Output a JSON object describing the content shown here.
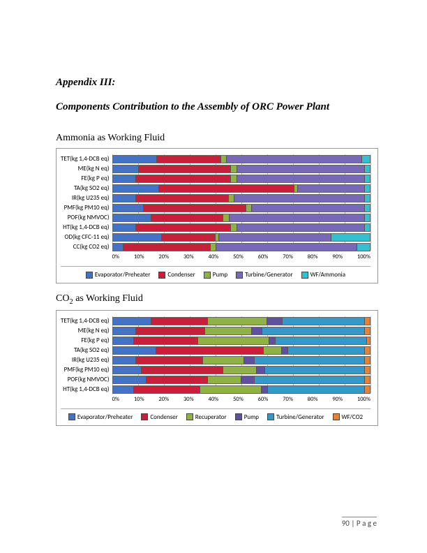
{
  "appendix_label": "Appendix III:",
  "section_title": "Components Contribution to the Assembly of ORC Power Plant",
  "footer_page": "90",
  "footer_suffix": " | P a g e",
  "colors": {
    "evap": "#4473c5",
    "cond": "#c8203a",
    "pump": "#90b146",
    "recup": "#90b146",
    "pump2": "#6050a0",
    "turb": "#7868b8",
    "turb2": "#3498c8",
    "wf_ammonia": "#35c0d0",
    "wf_co2": "#e98230"
  },
  "x_ticks": [
    "0%",
    "10%",
    "20%",
    "30%",
    "40%",
    "50%",
    "60%",
    "70%",
    "80%",
    "90%",
    "100%"
  ],
  "chart1": {
    "title": "Ammonia as Working Fluid",
    "categories": [
      "TET(kg 1,4-DCB eq)",
      "ME(kg N eq)",
      "FE(kg P eq)",
      "TA(kg SO2 eq)",
      "IR(kg U235 eq)",
      "PMF(kg PM10 eq)",
      "POF(kg NMVOC)",
      "HT(kg 1,4-DCB eq)",
      "OD(kg CFC-11 eq)",
      "CC(kg CO2 eq)"
    ],
    "legend": [
      {
        "label": "Evaporator/Preheater",
        "color": "evap"
      },
      {
        "label": "Condenser",
        "color": "cond"
      },
      {
        "label": "Pump",
        "color": "pump"
      },
      {
        "label": "Turbine/Generator",
        "color": "turb"
      },
      {
        "label": "WF/Ammonia",
        "color": "wf_ammonia"
      }
    ],
    "stacks": [
      [
        17,
        25,
        2,
        53,
        3
      ],
      [
        10,
        36,
        2,
        50,
        2
      ],
      [
        9,
        37,
        2,
        50,
        2
      ],
      [
        18,
        53,
        1,
        26,
        2
      ],
      [
        9,
        36,
        2,
        51,
        2
      ],
      [
        12,
        40,
        2,
        44,
        2
      ],
      [
        15,
        28,
        2,
        53,
        2
      ],
      [
        9,
        37,
        2,
        50,
        2
      ],
      [
        19,
        21,
        1,
        44,
        15
      ],
      [
        4,
        34,
        2,
        55,
        5
      ]
    ]
  },
  "chart2": {
    "title_html": "CO₂ as Working Fluid",
    "title_prefix": "CO",
    "title_sub": "2",
    "title_suffix": " as Working Fluid",
    "categories": [
      "TET(kg 1,4-DCB eq)",
      "ME(kg N eq)",
      "FE(kg P eq)",
      "TA(kg SO2 eq)",
      "IR(kg U235 eq)",
      "PMF(kg PM10 eq)",
      "POF(kg NMVOC)",
      "HT(kg 1,4-DCB eq)"
    ],
    "legend": [
      {
        "label": "Evaporator/Preheater",
        "color": "evap"
      },
      {
        "label": "Condenser",
        "color": "cond"
      },
      {
        "label": "Recuperator",
        "color": "recup"
      },
      {
        "label": "Pump",
        "color": "pump2"
      },
      {
        "label": "Turbine/Generator",
        "color": "turb2"
      },
      {
        "label": "WF/CO2",
        "color": "wf_co2"
      }
    ],
    "stacks": [
      [
        15,
        22,
        23,
        6,
        32,
        2
      ],
      [
        9,
        27,
        18,
        4,
        40,
        2
      ],
      [
        8,
        25,
        28,
        2,
        36,
        1
      ],
      [
        17,
        42,
        7,
        2,
        30,
        2
      ],
      [
        9,
        26,
        16,
        4,
        43,
        2
      ],
      [
        11,
        32,
        13,
        3,
        39,
        2
      ],
      [
        13,
        24,
        13,
        5,
        43,
        2
      ],
      [
        8,
        26,
        24,
        2,
        38,
        2
      ]
    ]
  }
}
